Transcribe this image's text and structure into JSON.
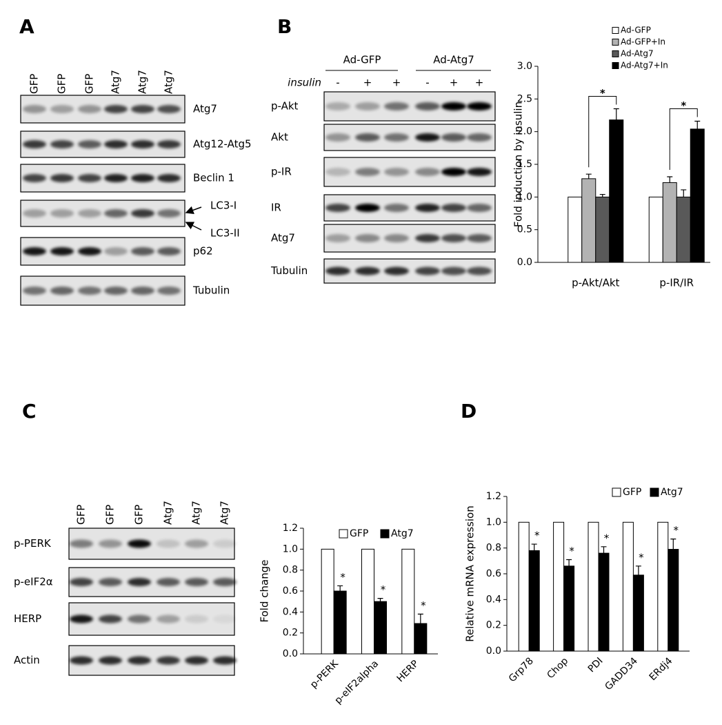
{
  "panel_labels": [
    "A",
    "B",
    "C",
    "D"
  ],
  "blot_a": {
    "lanes": [
      "GFP",
      "GFP",
      "GFP",
      "Atg7",
      "Atg7",
      "Atg7"
    ],
    "rows": [
      "Atg7",
      "Atg12-Atg5",
      "Beclin 1",
      "p62",
      "Tubulin"
    ],
    "lc3_labels": [
      "LC3-I",
      "LC3-II"
    ]
  },
  "blot_b": {
    "groups": [
      "Ad-GFP",
      "Ad-Atg7"
    ],
    "treatment_label": "insulin",
    "treatment": [
      "-",
      "+",
      "+",
      "-",
      "+",
      "+"
    ],
    "rows": [
      "p-Akt",
      "Akt",
      "p-IR",
      "IR",
      "Atg7",
      "Tubulin"
    ]
  },
  "blot_c": {
    "lanes": [
      "GFP",
      "GFP",
      "GFP",
      "Atg7",
      "Atg7",
      "Atg7"
    ],
    "rows": [
      "p-PERK",
      "p-eIF2α",
      "HERP",
      "Actin"
    ]
  },
  "chart_data": [
    {
      "type": "bar",
      "y_label": "Fold induction by  insulin",
      "categories": [
        "p-Akt/Akt",
        "p-IR/IR"
      ],
      "series": [
        {
          "name": "Ad-GFP",
          "color": "#ffffff",
          "values": [
            1.0,
            1.0
          ]
        },
        {
          "name": "Ad-GFP+In",
          "color": "#b3b3b3",
          "values": [
            1.28,
            1.22
          ],
          "errors": [
            0.07,
            0.09
          ]
        },
        {
          "name": "Ad-Atg7",
          "color": "#595959",
          "values": [
            1.0,
            1.0
          ],
          "errors": [
            0.04,
            0.11
          ]
        },
        {
          "name": "Ad-Atg7+In",
          "color": "#000000",
          "values": [
            2.18,
            2.04
          ],
          "errors": [
            0.17,
            0.12
          ]
        }
      ],
      "significance": [
        "*",
        "*"
      ],
      "ylim": [
        0,
        3
      ],
      "yticks": [
        {
          "value": 0,
          "label": "0.0"
        },
        0.5,
        {
          "value": 1,
          "label": "1.0"
        },
        1.5,
        {
          "value": 2,
          "label": "2.0"
        },
        2.5,
        {
          "value": 3,
          "label": "3.0"
        }
      ]
    },
    {
      "type": "bar",
      "y_label": "Fold  change",
      "categories": [
        "p-PERK",
        "p-eIF2alpha",
        "HERP"
      ],
      "series": [
        {
          "name": "GFP",
          "color": "#ffffff",
          "values": [
            1.0,
            1.0,
            1.0
          ]
        },
        {
          "name": "Atg7",
          "color": "#000000",
          "values": [
            0.6,
            0.5,
            0.29
          ],
          "errors": [
            0.05,
            0.03,
            0.09
          ]
        }
      ],
      "significance": [
        "*",
        "*",
        "*"
      ],
      "ylim": [
        0,
        1.2
      ],
      "yticks": [
        {
          "value": 0,
          "label": "0.0"
        },
        0.2,
        0.4,
        0.6,
        0.8,
        {
          "value": 1,
          "label": "1.0"
        },
        1.2
      ]
    },
    {
      "type": "bar",
      "y_label": "Relative mRNA expression",
      "categories": [
        "Grp78",
        "Chop",
        "PDI",
        "GADD34",
        "ERdj4"
      ],
      "series": [
        {
          "name": "GFP",
          "color": "#ffffff",
          "values": [
            1.0,
            1.0,
            1.0,
            1.0,
            1.0
          ]
        },
        {
          "name": "Atg7",
          "color": "#000000",
          "values": [
            0.78,
            0.66,
            0.76,
            0.59,
            0.79
          ],
          "errors": [
            0.05,
            0.05,
            0.05,
            0.07,
            0.08
          ]
        }
      ],
      "significance": [
        "*",
        "*",
        "*",
        "*",
        "*"
      ],
      "ylim": [
        0,
        1.2
      ],
      "yticks": [
        {
          "value": 0,
          "label": "0.0"
        },
        0.2,
        0.4,
        0.6,
        0.8,
        {
          "value": 1,
          "label": "1.0"
        },
        1.2
      ]
    }
  ]
}
